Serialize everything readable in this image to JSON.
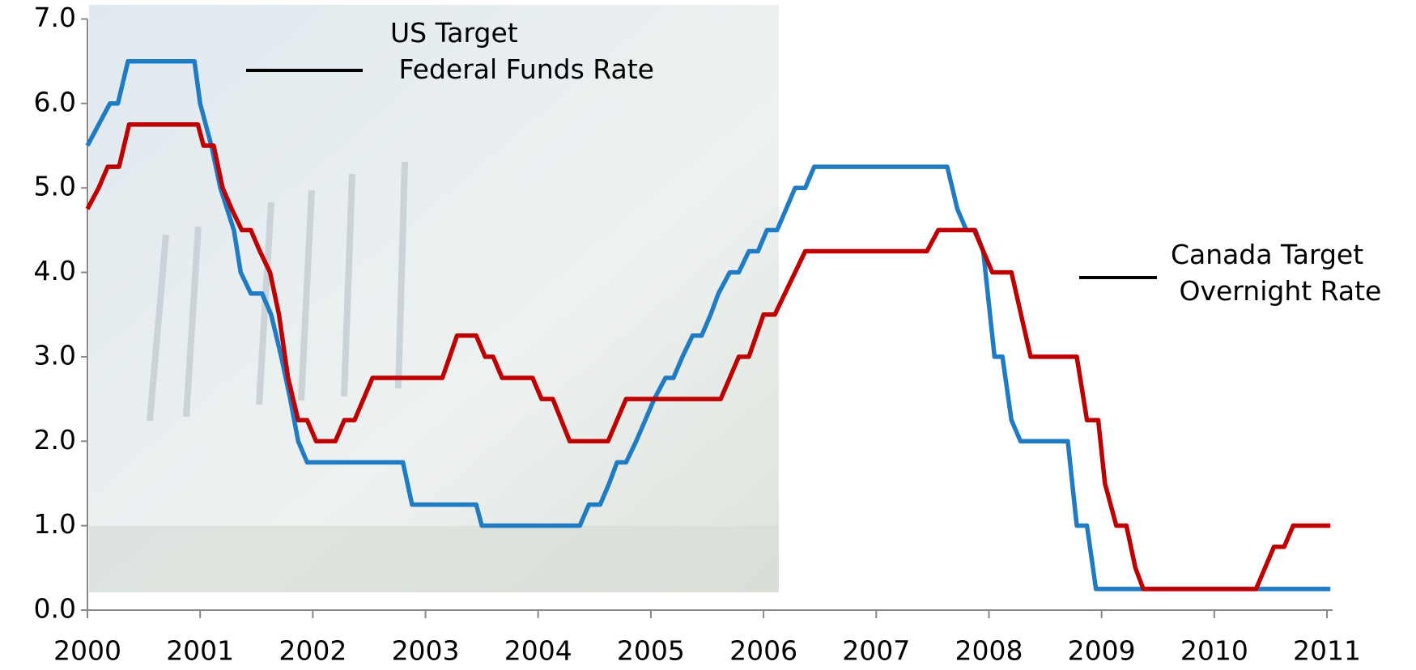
{
  "chart_data": {
    "type": "line",
    "xlim": [
      2000,
      2011.05
    ],
    "xticks": [
      2000,
      2001,
      2002,
      2003,
      2004,
      2005,
      2006,
      2007,
      2008,
      2009,
      2010,
      2011
    ],
    "ylim": [
      0,
      7
    ],
    "yticks": [
      {
        "value": 0,
        "label": "0.0"
      },
      {
        "value": 1,
        "label": "1.0"
      },
      {
        "value": 2,
        "label": "2.0"
      },
      {
        "value": 3,
        "label": "3.0"
      },
      {
        "value": 4,
        "label": "4.0"
      },
      {
        "value": 5,
        "label": "5.0"
      },
      {
        "value": 6,
        "label": "6.0"
      },
      {
        "value": 7,
        "label": "7.0"
      }
    ],
    "series": [
      {
        "name": "US Target\n Federal Funds Rate",
        "color": "#1f7cc4",
        "x": [
          2000.0,
          2000.2,
          2000.27,
          2000.36,
          2000.95,
          2001.0,
          2001.1,
          2001.18,
          2001.3,
          2001.36,
          2001.45,
          2001.55,
          2001.63,
          2001.72,
          2001.8,
          2001.87,
          2001.95,
          2002.8,
          2002.88,
          2003.45,
          2003.5,
          2004.37,
          2004.45,
          2004.55,
          2004.63,
          2004.7,
          2004.78,
          2004.87,
          2004.95,
          2005.03,
          2005.13,
          2005.2,
          2005.28,
          2005.37,
          2005.45,
          2005.53,
          2005.6,
          2005.7,
          2005.78,
          2005.87,
          2005.95,
          2006.03,
          2006.12,
          2006.2,
          2006.28,
          2006.37,
          2006.45,
          2007.63,
          2007.72,
          2007.8,
          2007.88,
          2007.95,
          2008.05,
          2008.12,
          2008.2,
          2008.28,
          2008.7,
          2008.78,
          2008.87,
          2008.95,
          2011.03
        ],
        "values": [
          5.5,
          6.0,
          6.0,
          6.5,
          6.5,
          6.0,
          5.5,
          5.0,
          4.5,
          4.0,
          3.75,
          3.75,
          3.5,
          3.0,
          2.5,
          2.0,
          1.75,
          1.75,
          1.25,
          1.25,
          1.0,
          1.0,
          1.25,
          1.25,
          1.5,
          1.75,
          1.75,
          2.0,
          2.25,
          2.5,
          2.75,
          2.75,
          3.0,
          3.25,
          3.25,
          3.5,
          3.75,
          4.0,
          4.0,
          4.25,
          4.25,
          4.5,
          4.5,
          4.75,
          5.0,
          5.0,
          5.25,
          5.25,
          4.75,
          4.5,
          4.5,
          4.25,
          3.0,
          3.0,
          2.25,
          2.0,
          2.0,
          1.0,
          1.0,
          0.25,
          0.25
        ]
      },
      {
        "name": "Canada Target\n Overnight Rate",
        "color": "#c00000",
        "x": [
          2000.0,
          2000.1,
          2000.18,
          2000.28,
          2000.37,
          2000.98,
          2001.03,
          2001.12,
          2001.2,
          2001.28,
          2001.37,
          2001.45,
          2001.53,
          2001.62,
          2001.7,
          2001.78,
          2001.87,
          2001.95,
          2002.03,
          2002.2,
          2002.28,
          2002.37,
          2002.45,
          2002.53,
          2003.15,
          2003.28,
          2003.45,
          2003.53,
          2003.6,
          2003.68,
          2003.95,
          2004.03,
          2004.13,
          2004.28,
          2004.62,
          2004.78,
          2005.62,
          2005.78,
          2005.87,
          2006.0,
          2006.1,
          2006.37,
          2007.45,
          2007.55,
          2007.87,
          2008.03,
          2008.2,
          2008.37,
          2008.78,
          2008.87,
          2008.97,
          2009.03,
          2009.13,
          2009.22,
          2009.3,
          2009.37,
          2010.37,
          2010.45,
          2010.53,
          2010.62,
          2010.7,
          2011.03
        ],
        "values": [
          4.75,
          5.0,
          5.25,
          5.25,
          5.75,
          5.75,
          5.5,
          5.5,
          5.0,
          4.75,
          4.5,
          4.5,
          4.25,
          4.0,
          3.5,
          2.75,
          2.25,
          2.25,
          2.0,
          2.0,
          2.25,
          2.25,
          2.5,
          2.75,
          2.75,
          3.25,
          3.25,
          3.0,
          3.0,
          2.75,
          2.75,
          2.5,
          2.5,
          2.0,
          2.0,
          2.5,
          2.5,
          3.0,
          3.0,
          3.5,
          3.5,
          4.25,
          4.25,
          4.5,
          4.5,
          4.0,
          4.0,
          3.0,
          3.0,
          2.25,
          2.25,
          1.5,
          1.0,
          1.0,
          0.5,
          0.25,
          0.25,
          0.5,
          0.75,
          0.75,
          1.0,
          1.0
        ]
      }
    ]
  }
}
